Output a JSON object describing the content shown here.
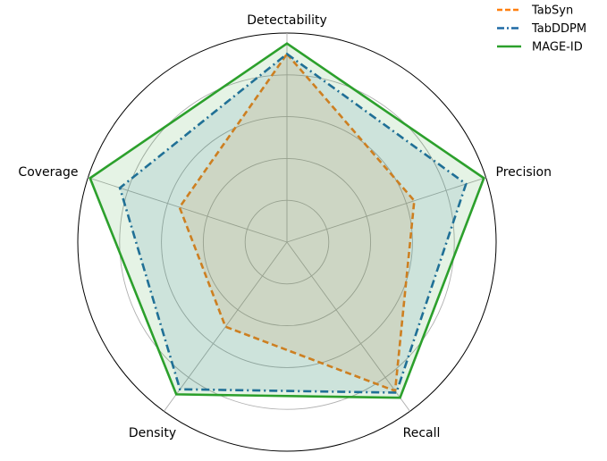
{
  "chart_data": {
    "type": "radar",
    "axes": [
      "Detectability",
      "Precision",
      "Recall",
      "Density",
      "Coverage"
    ],
    "rmax": 1.0,
    "ring_values": [
      0.2,
      0.4,
      0.6,
      0.8,
      1.0
    ],
    "grid": true,
    "legend_position": "top-right",
    "series": [
      {
        "name": "TabSyn",
        "values": [
          0.9,
          0.64,
          0.88,
          0.5,
          0.54
        ],
        "color": "#ff7f0e",
        "line_style": "dashed",
        "filled": true
      },
      {
        "name": "TabDDPM",
        "values": [
          0.9,
          0.9,
          0.89,
          0.87,
          0.84
        ],
        "color": "#1f6aa5",
        "line_style": "dashdot",
        "filled": true
      },
      {
        "name": "MAGE-ID",
        "values": [
          0.95,
          0.99,
          0.92,
          0.9,
          0.99
        ],
        "color": "#2ca02c",
        "line_style": "solid",
        "filled": true
      }
    ]
  }
}
